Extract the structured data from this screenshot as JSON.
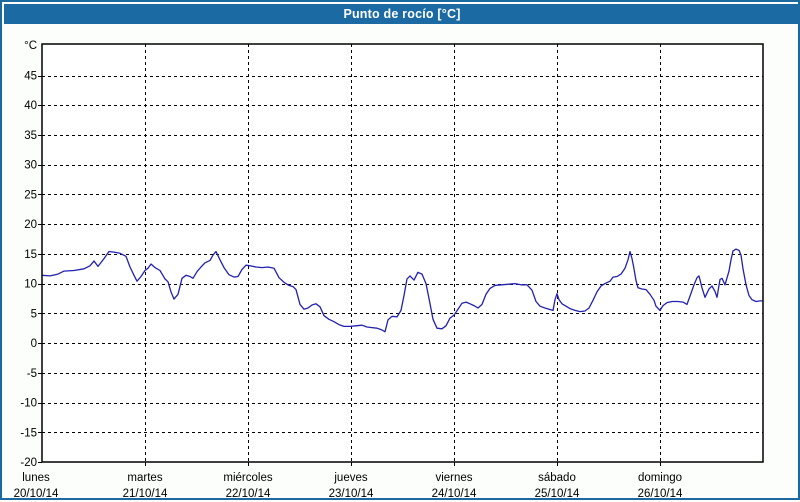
{
  "window": {
    "title": "Punto de rocío [°C]"
  },
  "colors": {
    "titlebar_bg": "#1B6AA4",
    "frame_border": "#1C699F",
    "page_bg": "#FBFEFB",
    "plot_bg": "#FFFFFF",
    "grid": "#000000",
    "axis": "#000000",
    "tick_text": "#000000",
    "line": "#2121B2",
    "title_text": "#FFFFFF"
  },
  "chart_data": {
    "type": "line",
    "title": "Punto de rocío [°C]",
    "ylabel": "°C",
    "xlabel": "",
    "grid": true,
    "legend": "none",
    "ylim": [
      -20,
      50.3
    ],
    "y_ticks": [
      45,
      40,
      35,
      30,
      25,
      20,
      15,
      10,
      5,
      0,
      -5,
      -10,
      -15,
      -20
    ],
    "x_days": [
      {
        "name": "lunes",
        "date": "20/10/14"
      },
      {
        "name": "martes",
        "date": "21/10/14"
      },
      {
        "name": "miércoles",
        "date": "22/10/14"
      },
      {
        "name": "jueves",
        "date": "23/10/14"
      },
      {
        "name": "viernes",
        "date": "24/10/14"
      },
      {
        "name": "sábado",
        "date": "25/10/14"
      },
      {
        "name": "domingo",
        "date": "26/10/14"
      }
    ],
    "series": [
      {
        "name": "Punto de rocío",
        "color": "#2121B2",
        "points": [
          [
            0.0,
            11.4
          ],
          [
            0.078,
            11.3
          ],
          [
            0.155,
            11.6
          ],
          [
            0.214,
            12.1
          ],
          [
            0.311,
            12.2
          ],
          [
            0.408,
            12.5
          ],
          [
            0.466,
            13.0
          ],
          [
            0.505,
            13.8
          ],
          [
            0.544,
            12.9
          ],
          [
            0.602,
            14.2
          ],
          [
            0.65,
            15.4
          ],
          [
            0.699,
            15.3
          ],
          [
            0.757,
            15.1
          ],
          [
            0.816,
            14.6
          ],
          [
            0.854,
            12.8
          ],
          [
            0.893,
            11.4
          ],
          [
            0.922,
            10.4
          ],
          [
            0.961,
            11.2
          ],
          [
            1.0,
            12.2
          ],
          [
            1.029,
            12.6
          ],
          [
            1.058,
            13.3
          ],
          [
            1.097,
            12.7
          ],
          [
            1.146,
            12.2
          ],
          [
            1.194,
            10.8
          ],
          [
            1.223,
            10.3
          ],
          [
            1.252,
            8.6
          ],
          [
            1.282,
            7.4
          ],
          [
            1.32,
            8.2
          ],
          [
            1.359,
            10.9
          ],
          [
            1.398,
            11.4
          ],
          [
            1.437,
            11.2
          ],
          [
            1.466,
            10.9
          ],
          [
            1.505,
            12.0
          ],
          [
            1.544,
            12.8
          ],
          [
            1.583,
            13.5
          ],
          [
            1.631,
            13.9
          ],
          [
            1.66,
            14.8
          ],
          [
            1.689,
            15.4
          ],
          [
            1.728,
            14.0
          ],
          [
            1.767,
            12.7
          ],
          [
            1.816,
            11.5
          ],
          [
            1.864,
            11.1
          ],
          [
            1.903,
            11.2
          ],
          [
            1.942,
            12.4
          ],
          [
            1.981,
            13.1
          ],
          [
            2.019,
            13.0
          ],
          [
            2.078,
            12.8
          ],
          [
            2.136,
            12.7
          ],
          [
            2.194,
            12.8
          ],
          [
            2.252,
            12.6
          ],
          [
            2.301,
            11.0
          ],
          [
            2.35,
            10.2
          ],
          [
            2.398,
            9.7
          ],
          [
            2.437,
            9.5
          ],
          [
            2.466,
            9.0
          ],
          [
            2.505,
            6.5
          ],
          [
            2.544,
            5.7
          ],
          [
            2.583,
            5.9
          ],
          [
            2.621,
            6.4
          ],
          [
            2.66,
            6.6
          ],
          [
            2.699,
            6.1
          ],
          [
            2.738,
            4.6
          ],
          [
            2.786,
            4.0
          ],
          [
            2.835,
            3.6
          ],
          [
            2.883,
            3.1
          ],
          [
            2.932,
            2.8
          ],
          [
            2.99,
            2.8
          ],
          [
            3.049,
            2.9
          ],
          [
            3.107,
            3.0
          ],
          [
            3.155,
            2.7
          ],
          [
            3.204,
            2.6
          ],
          [
            3.252,
            2.5
          ],
          [
            3.301,
            2.2
          ],
          [
            3.33,
            1.9
          ],
          [
            3.359,
            3.9
          ],
          [
            3.398,
            4.5
          ],
          [
            3.447,
            4.4
          ],
          [
            3.485,
            5.5
          ],
          [
            3.515,
            8.0
          ],
          [
            3.544,
            10.8
          ],
          [
            3.573,
            11.3
          ],
          [
            3.612,
            10.6
          ],
          [
            3.65,
            11.9
          ],
          [
            3.689,
            11.6
          ],
          [
            3.728,
            10.0
          ],
          [
            3.757,
            7.5
          ],
          [
            3.796,
            4.0
          ],
          [
            3.835,
            2.5
          ],
          [
            3.883,
            2.4
          ],
          [
            3.922,
            2.9
          ],
          [
            3.961,
            4.2
          ],
          [
            4.0,
            4.7
          ],
          [
            4.039,
            5.7
          ],
          [
            4.078,
            6.7
          ],
          [
            4.117,
            6.9
          ],
          [
            4.155,
            6.6
          ],
          [
            4.194,
            6.3
          ],
          [
            4.233,
            5.9
          ],
          [
            4.272,
            6.5
          ],
          [
            4.311,
            8.2
          ],
          [
            4.35,
            9.2
          ],
          [
            4.398,
            9.7
          ],
          [
            4.466,
            9.8
          ],
          [
            4.534,
            9.9
          ],
          [
            4.592,
            10.0
          ],
          [
            4.65,
            9.8
          ],
          [
            4.709,
            9.8
          ],
          [
            4.757,
            8.9
          ],
          [
            4.796,
            7.0
          ],
          [
            4.835,
            6.2
          ],
          [
            4.883,
            5.9
          ],
          [
            4.922,
            5.7
          ],
          [
            4.961,
            5.5
          ],
          [
            4.981,
            7.3
          ],
          [
            5.0,
            8.3
          ],
          [
            5.019,
            7.3
          ],
          [
            5.049,
            6.6
          ],
          [
            5.087,
            6.2
          ],
          [
            5.126,
            5.8
          ],
          [
            5.175,
            5.5
          ],
          [
            5.223,
            5.3
          ],
          [
            5.272,
            5.4
          ],
          [
            5.311,
            5.9
          ],
          [
            5.35,
            7.2
          ],
          [
            5.388,
            8.6
          ],
          [
            5.427,
            9.6
          ],
          [
            5.466,
            10.0
          ],
          [
            5.515,
            10.4
          ],
          [
            5.544,
            11.1
          ],
          [
            5.583,
            11.2
          ],
          [
            5.621,
            11.6
          ],
          [
            5.66,
            12.6
          ],
          [
            5.689,
            14.0
          ],
          [
            5.709,
            15.4
          ],
          [
            5.728,
            14.2
          ],
          [
            5.748,
            12.5
          ],
          [
            5.767,
            10.5
          ],
          [
            5.786,
            9.3
          ],
          [
            5.825,
            9.1
          ],
          [
            5.864,
            9.0
          ],
          [
            5.903,
            8.2
          ],
          [
            5.942,
            7.2
          ],
          [
            5.961,
            6.2
          ],
          [
            6.0,
            5.5
          ],
          [
            6.029,
            6.3
          ],
          [
            6.068,
            6.8
          ],
          [
            6.117,
            7.0
          ],
          [
            6.175,
            7.0
          ],
          [
            6.223,
            6.9
          ],
          [
            6.262,
            6.5
          ],
          [
            6.291,
            7.9
          ],
          [
            6.33,
            9.8
          ],
          [
            6.359,
            11.0
          ],
          [
            6.379,
            11.3
          ],
          [
            6.408,
            9.3
          ],
          [
            6.437,
            7.7
          ],
          [
            6.476,
            9.1
          ],
          [
            6.505,
            9.6
          ],
          [
            6.534,
            8.7
          ],
          [
            6.553,
            7.7
          ],
          [
            6.583,
            10.7
          ],
          [
            6.602,
            10.9
          ],
          [
            6.631,
            9.8
          ],
          [
            6.67,
            12.1
          ],
          [
            6.689,
            14.0
          ],
          [
            6.709,
            15.5
          ],
          [
            6.738,
            15.8
          ],
          [
            6.767,
            15.6
          ],
          [
            6.786,
            14.8
          ],
          [
            6.806,
            12.5
          ],
          [
            6.835,
            9.8
          ],
          [
            6.864,
            8.0
          ],
          [
            6.893,
            7.3
          ],
          [
            6.932,
            7.0
          ],
          [
            6.971,
            7.1
          ],
          [
            6.99,
            7.1
          ]
        ]
      }
    ]
  }
}
